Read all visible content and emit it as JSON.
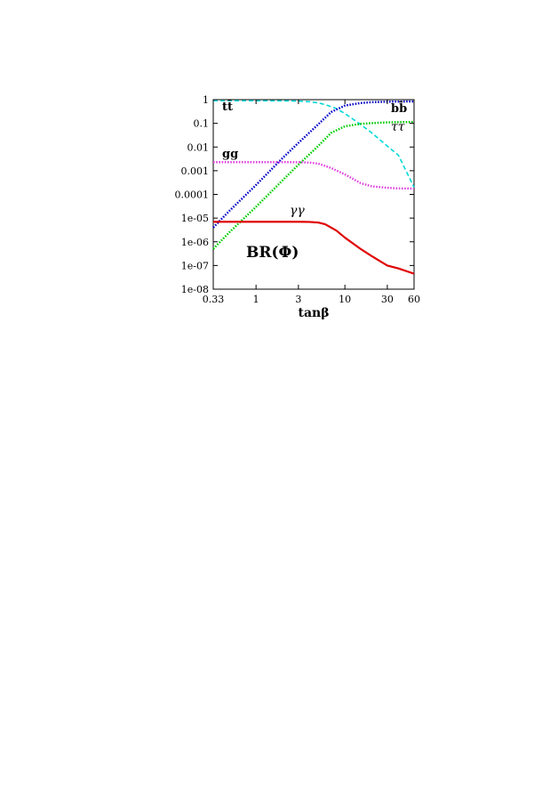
{
  "chart_data": {
    "type": "line",
    "title": "",
    "xlabel": "tanβ",
    "ylabel": "",
    "xscale": "log",
    "yscale": "log",
    "xlim": [
      0.33,
      60
    ],
    "ylim": [
      1e-08,
      1
    ],
    "grid": false,
    "xticks": [
      {
        "value": 0.33,
        "label": "0.33"
      },
      {
        "value": 1,
        "label": "1"
      },
      {
        "value": 3,
        "label": "3"
      },
      {
        "value": 10,
        "label": "10"
      },
      {
        "value": 30,
        "label": "30"
      },
      {
        "value": 60,
        "label": "60"
      }
    ],
    "yticks": [
      {
        "value": 1,
        "label": "1"
      },
      {
        "value": 0.1,
        "label": "0.1"
      },
      {
        "value": 0.01,
        "label": "0.01"
      },
      {
        "value": 0.001,
        "label": "0.001"
      },
      {
        "value": 0.0001,
        "label": "0.0001"
      },
      {
        "value": 1e-05,
        "label": "1e-05"
      },
      {
        "value": 1e-06,
        "label": "1e-06"
      },
      {
        "value": 1e-07,
        "label": "1e-07"
      },
      {
        "value": 1e-08,
        "label": "1e-08"
      }
    ],
    "annotation": "BR(Φ)",
    "series": [
      {
        "name": "tt̄",
        "color": "#00d8d8",
        "style": "dashed",
        "x": [
          0.33,
          1,
          2,
          3,
          4,
          5,
          6,
          8,
          10,
          15,
          20,
          30,
          40,
          60
        ],
        "y": [
          0.9,
          0.9,
          0.89,
          0.87,
          0.82,
          0.73,
          0.62,
          0.42,
          0.26,
          0.09,
          0.04,
          0.011,
          0.0045,
          0.0002
        ]
      },
      {
        "name": "bb̄",
        "color": "#0000c8",
        "style": "dotted",
        "x": [
          0.33,
          0.5,
          1,
          2,
          3,
          5,
          7,
          10,
          15,
          20,
          30,
          60
        ],
        "y": [
          4e-06,
          2e-05,
          0.00025,
          0.0035,
          0.015,
          0.09,
          0.3,
          0.56,
          0.72,
          0.78,
          0.82,
          0.84
        ]
      },
      {
        "name": "ττ",
        "color": "#00cc00",
        "style": "dotted",
        "x": [
          0.33,
          0.5,
          1,
          2,
          3,
          5,
          7,
          10,
          15,
          20,
          30,
          60
        ],
        "y": [
          5e-07,
          2.5e-06,
          3e-05,
          0.0004,
          0.0018,
          0.011,
          0.04,
          0.075,
          0.095,
          0.102,
          0.11,
          0.115
        ]
      },
      {
        "name": "gg",
        "color": "#e040e0",
        "style": "dotted",
        "x": [
          0.33,
          1,
          2,
          3,
          4,
          5,
          7,
          10,
          15,
          20,
          30,
          40,
          60
        ],
        "y": [
          0.0023,
          0.0023,
          0.0023,
          0.0023,
          0.0022,
          0.002,
          0.0013,
          0.0007,
          0.0003,
          0.00022,
          0.00019,
          0.00018,
          0.000175
        ]
      },
      {
        "name": "γγ",
        "color": "#e00000",
        "style": "solid",
        "x": [
          0.33,
          1,
          2,
          3,
          4,
          5,
          6,
          8,
          10,
          15,
          20,
          30,
          40,
          60
        ],
        "y": [
          7e-06,
          7e-06,
          7e-06,
          7e-06,
          6.9e-06,
          6.5e-06,
          5.5e-06,
          3e-06,
          1.5e-06,
          5e-07,
          2.5e-07,
          1e-07,
          7.5e-08,
          4.5e-08
        ]
      }
    ]
  }
}
